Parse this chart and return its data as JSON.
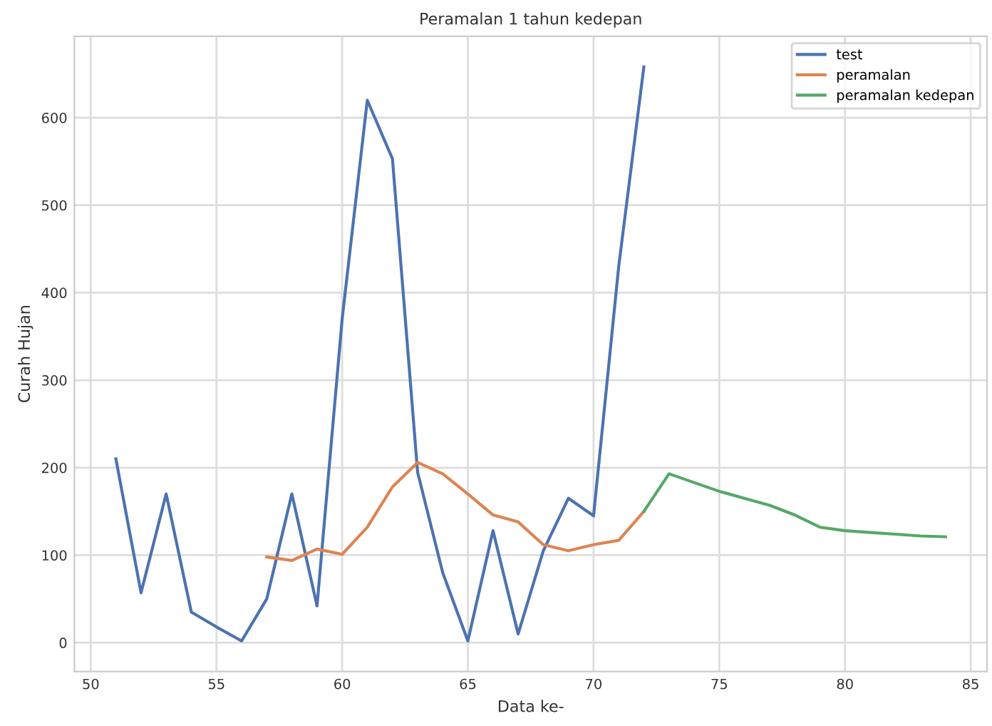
{
  "chart_data": {
    "type": "line",
    "title": "Peramalan 1 tahun kedepan",
    "xlabel": "Data ke-",
    "ylabel": "Curah Hujan",
    "series": [
      {
        "name": "test",
        "color": "#4c72b0",
        "x": [
          51,
          52,
          53,
          54,
          55,
          56,
          57,
          58,
          59,
          60,
          61,
          62,
          63,
          64,
          65,
          66,
          67,
          68,
          69,
          70,
          71,
          72
        ],
        "values": [
          210,
          57,
          170,
          35,
          18,
          2,
          50,
          170,
          42,
          370,
          620,
          553,
          195,
          80,
          2,
          128,
          10,
          105,
          165,
          145,
          430,
          658
        ]
      },
      {
        "name": "peramalan",
        "color": "#dd8452",
        "x": [
          57,
          58,
          59,
          60,
          61,
          62,
          63,
          64,
          65,
          66,
          67,
          68,
          69,
          70,
          71,
          72
        ],
        "values": [
          98,
          94,
          107,
          101,
          132,
          178,
          206,
          193,
          170,
          146,
          138,
          112,
          105,
          112,
          117,
          150
        ]
      },
      {
        "name": "peramalan kedepan",
        "color": "#55a868",
        "x": [
          72,
          73,
          74,
          75,
          76,
          77,
          78,
          79,
          80,
          81,
          82,
          83,
          84
        ],
        "values": [
          150,
          193,
          183,
          173,
          165,
          157,
          146,
          132,
          128,
          126,
          124,
          122,
          121
        ]
      }
    ],
    "xlim": [
      49.35,
      85.65
    ],
    "ylim": [
      -33,
      693
    ],
    "xticks": [
      50,
      55,
      60,
      65,
      70,
      75,
      80,
      85
    ],
    "yticks": [
      0,
      100,
      200,
      300,
      400,
      500,
      600
    ],
    "grid": true,
    "legend": "top right",
    "marker": "none",
    "line_style": "solid"
  }
}
